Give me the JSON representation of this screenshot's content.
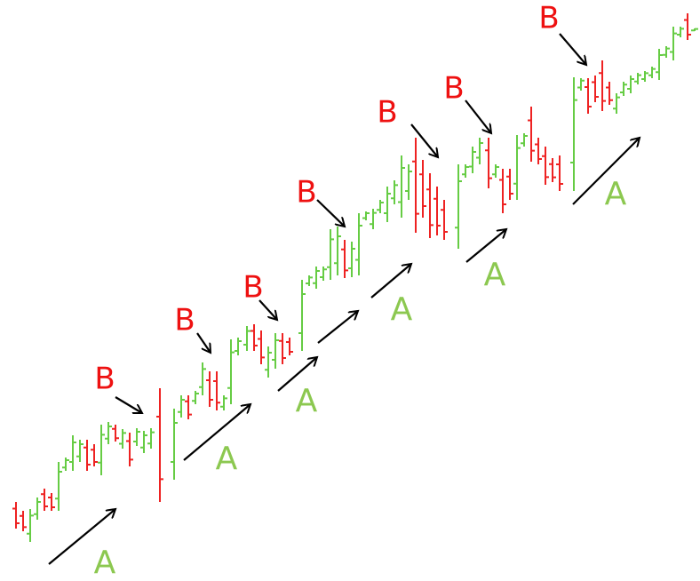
{
  "a_labels": [
    "A",
    "A",
    "A",
    "A",
    "A",
    "A"
  ],
  "b_labels": [
    "B",
    "B",
    "B",
    "B",
    "B",
    "B",
    "B"
  ]
}
